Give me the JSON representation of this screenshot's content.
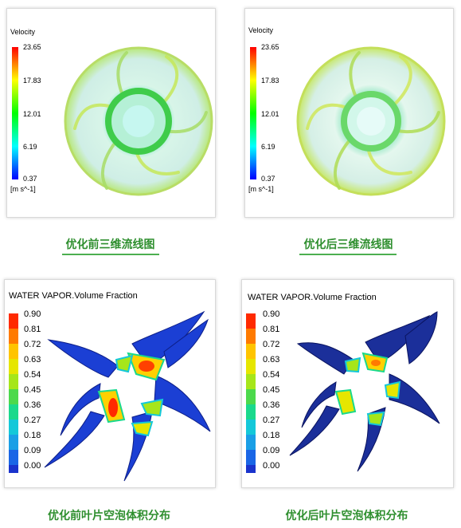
{
  "velocity_panels": [
    {
      "legend_title": "Velocity",
      "ticks": [
        "23.65",
        "17.83",
        "12.01",
        "6.19",
        "0.37"
      ],
      "unit": "[m s^-1]",
      "caption": "优化前三维流线图"
    },
    {
      "legend_title": "Velocity",
      "ticks": [
        "23.65",
        "17.83",
        "12.01",
        "6.19",
        "0.37"
      ],
      "unit": "[m s^-1]",
      "caption": "优化后三维流线图"
    }
  ],
  "vapor_panels": [
    {
      "legend_title": "WATER VAPOR.Volume Fraction",
      "ticks": [
        "0.90",
        "0.81",
        "0.72",
        "0.63",
        "0.54",
        "0.45",
        "0.36",
        "0.27",
        "0.18",
        "0.09",
        "0.00"
      ],
      "caption": "优化前叶片空泡体积分布"
    },
    {
      "legend_title": "WATER VAPOR.Volume Fraction",
      "ticks": [
        "0.90",
        "0.81",
        "0.72",
        "0.63",
        "0.54",
        "0.45",
        "0.36",
        "0.27",
        "0.18",
        "0.09",
        "0.00"
      ],
      "caption": "优化后叶片空泡体积分布"
    }
  ],
  "colors": {
    "caption_green": "#2f8f2f",
    "underline_green": "#4caf50",
    "vapor_steps": [
      "#ff2a00",
      "#ff7a00",
      "#ffc400",
      "#e6e600",
      "#a6e61a",
      "#4cd94c",
      "#1ad98c",
      "#14c8d9",
      "#1a9fe6",
      "#1a66e6",
      "#1a33cc"
    ]
  }
}
